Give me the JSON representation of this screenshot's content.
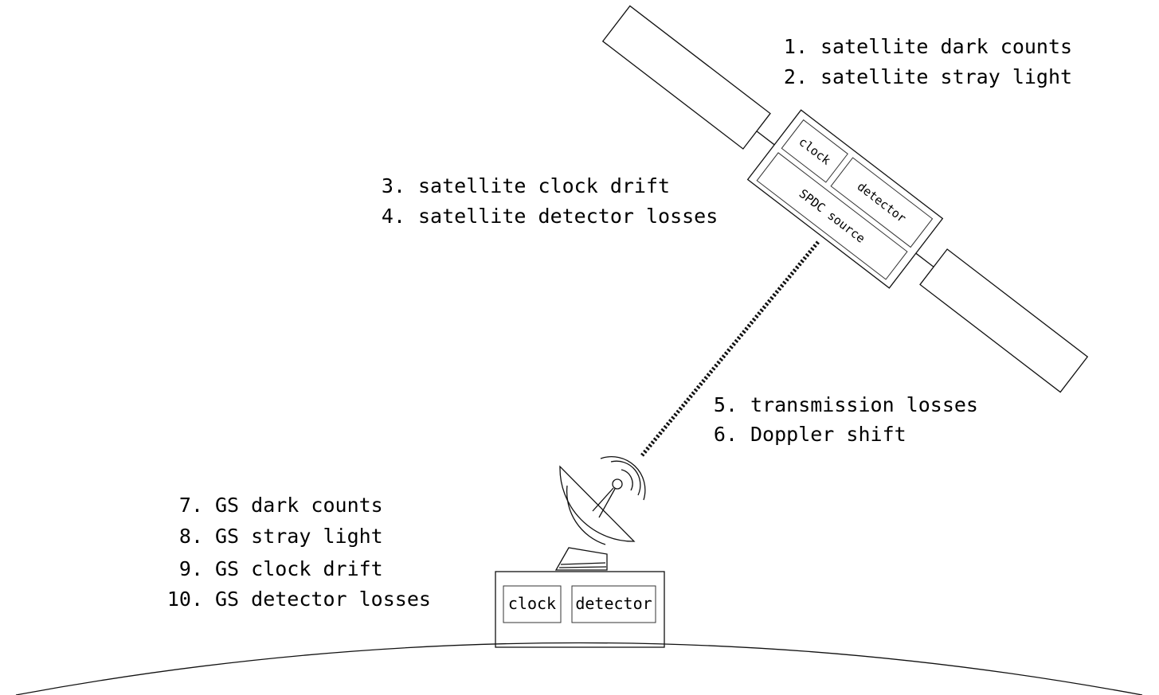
{
  "satellite": {
    "parts": {
      "clock": "clock",
      "detector": "detector",
      "source": "SPDC source"
    }
  },
  "ground_station": {
    "parts": {
      "clock": "clock",
      "detector": "detector"
    }
  },
  "label_groups": {
    "satellite_top": [
      {
        "num": "1.",
        "text": "satellite dark counts"
      },
      {
        "num": "2.",
        "text": "satellite stray light"
      }
    ],
    "satellite_mid": [
      {
        "num": "3.",
        "text": "satellite clock drift"
      },
      {
        "num": "4.",
        "text": "satellite detector losses"
      }
    ],
    "link": [
      {
        "num": "5.",
        "text": "transmission losses"
      },
      {
        "num": "6.",
        "text": "Doppler shift"
      }
    ],
    "ground": [
      {
        "num": "7.",
        "text": "GS dark counts"
      },
      {
        "num": "8.",
        "text": "GS stray light"
      },
      {
        "num": "9.",
        "text": "GS clock drift"
      },
      {
        "num": "10.",
        "text": "GS detector losses"
      }
    ]
  }
}
